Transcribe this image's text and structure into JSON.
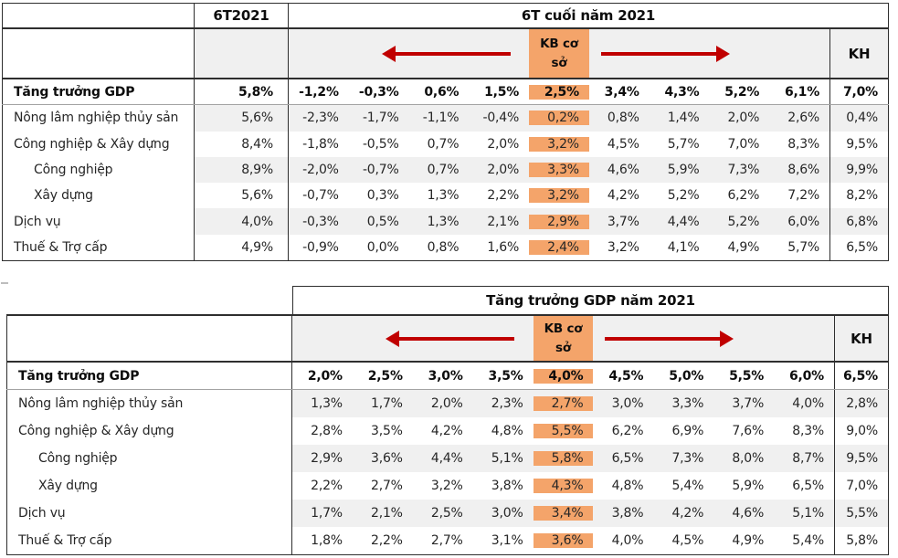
{
  "colors": {
    "accent_orange": "#F4A46A",
    "stripe_gray": "#F0F0F0",
    "arrow_red": "#C00000"
  },
  "table1": {
    "col1_header": "6T2021",
    "span_header": "6T cuối năm 2021",
    "kb_label": "KB cơ sở",
    "kh_label": "KH",
    "rows": [
      {
        "label": "Tăng trưởng GDP",
        "bold": true,
        "col1": "5,8%",
        "values": [
          "-1,2%",
          "-0,3%",
          "0,6%",
          "1,5%",
          "2,5%",
          "3,4%",
          "4,3%",
          "5,2%",
          "6,1%"
        ],
        "kh": "7,0%"
      },
      {
        "label": "Nông lâm nghiệp thủy sản",
        "col1": "5,6%",
        "values": [
          "-2,3%",
          "-1,7%",
          "-1,1%",
          "-0,4%",
          "0,2%",
          "0,8%",
          "1,4%",
          "2,0%",
          "2,6%"
        ],
        "kh": "0,4%"
      },
      {
        "label": "Công nghiệp & Xây dựng",
        "col1": "8,4%",
        "values": [
          "-1,8%",
          "-0,5%",
          "0,7%",
          "2,0%",
          "3,2%",
          "4,5%",
          "5,7%",
          "7,0%",
          "8,3%"
        ],
        "kh": "9,5%"
      },
      {
        "label": "Công nghiệp",
        "indent": true,
        "col1": "8,9%",
        "values": [
          "-2,0%",
          "-0,7%",
          "0,7%",
          "2,0%",
          "3,3%",
          "4,6%",
          "5,9%",
          "7,3%",
          "8,6%"
        ],
        "kh": "9,9%"
      },
      {
        "label": "Xây dựng",
        "indent": true,
        "col1": "5,6%",
        "values": [
          "-0,7%",
          "0,3%",
          "1,3%",
          "2,2%",
          "3,2%",
          "4,2%",
          "5,2%",
          "6,2%",
          "7,2%"
        ],
        "kh": "8,2%"
      },
      {
        "label": "Dịch vụ",
        "col1": "4,0%",
        "values": [
          "-0,3%",
          "0,5%",
          "1,3%",
          "2,1%",
          "2,9%",
          "3,7%",
          "4,4%",
          "5,2%",
          "6,0%"
        ],
        "kh": "6,8%"
      },
      {
        "label": "Thuế & Trợ cấp",
        "col1": "4,9%",
        "values": [
          "-0,9%",
          "0,0%",
          "0,8%",
          "1,6%",
          "2,4%",
          "3,2%",
          "4,1%",
          "4,9%",
          "5,7%"
        ],
        "kh": "6,5%"
      }
    ]
  },
  "table2": {
    "span_header": "Tăng trưởng GDP năm 2021",
    "kb_label": "KB cơ sở",
    "kh_label": "KH",
    "rows": [
      {
        "label": "Tăng trưởng GDP",
        "bold": true,
        "values": [
          "2,0%",
          "2,5%",
          "3,0%",
          "3,5%",
          "4,0%",
          "4,5%",
          "5,0%",
          "5,5%",
          "6,0%"
        ],
        "kh": "6,5%"
      },
      {
        "label": "Nông lâm nghiệp thủy sản",
        "values": [
          "1,3%",
          "1,7%",
          "2,0%",
          "2,3%",
          "2,7%",
          "3,0%",
          "3,3%",
          "3,7%",
          "4,0%"
        ],
        "kh": "2,8%"
      },
      {
        "label": "Công nghiệp & Xây dựng",
        "values": [
          "2,8%",
          "3,5%",
          "4,2%",
          "4,8%",
          "5,5%",
          "6,2%",
          "6,9%",
          "7,6%",
          "8,3%"
        ],
        "kh": "9,0%"
      },
      {
        "label": "Công nghiệp",
        "indent": true,
        "values": [
          "2,9%",
          "3,6%",
          "4,4%",
          "5,1%",
          "5,8%",
          "6,5%",
          "7,3%",
          "8,0%",
          "8,7%"
        ],
        "kh": "9,5%"
      },
      {
        "label": "Xây dựng",
        "indent": true,
        "values": [
          "2,2%",
          "2,7%",
          "3,2%",
          "3,8%",
          "4,3%",
          "4,8%",
          "5,4%",
          "5,9%",
          "6,5%"
        ],
        "kh": "7,0%"
      },
      {
        "label": "Dịch vụ",
        "values": [
          "1,7%",
          "2,1%",
          "2,5%",
          "3,0%",
          "3,4%",
          "3,8%",
          "4,2%",
          "4,6%",
          "5,1%"
        ],
        "kh": "5,5%"
      },
      {
        "label": "Thuế & Trợ cấp",
        "values": [
          "1,8%",
          "2,2%",
          "2,7%",
          "3,1%",
          "3,6%",
          "4,0%",
          "4,5%",
          "4,9%",
          "5,4%"
        ],
        "kh": "5,8%"
      }
    ]
  }
}
